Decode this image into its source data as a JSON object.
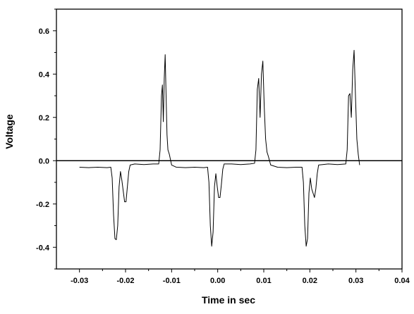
{
  "chart_data": {
    "type": "line",
    "title": "",
    "xlabel": "Time in sec",
    "ylabel": "Voltage",
    "xlim": [
      -0.035,
      0.04
    ],
    "ylim": [
      -0.5,
      0.7
    ],
    "x_ticks": [
      -0.03,
      -0.02,
      -0.01,
      0.0,
      0.01,
      0.02,
      0.03,
      0.04
    ],
    "x_tick_labels": [
      "-0.03",
      "-0.02",
      "-0.01",
      "0.00",
      "0.01",
      "0.02",
      "0.03",
      "0.04"
    ],
    "y_ticks": [
      -0.4,
      -0.2,
      0.0,
      0.2,
      0.4,
      0.6
    ],
    "y_tick_labels": [
      "-0.4",
      "-0.2",
      "0.0",
      "0.2",
      "0.4",
      "0.6"
    ],
    "zero_line": 0.0,
    "grid": false,
    "series": [
      {
        "color": "#000000",
        "points": [
          [
            -0.03,
            -0.03
          ],
          [
            -0.028,
            -0.032
          ],
          [
            -0.026,
            -0.03
          ],
          [
            -0.024,
            -0.032
          ],
          [
            -0.0232,
            -0.03
          ],
          [
            -0.0229,
            -0.08
          ],
          [
            -0.0226,
            -0.25
          ],
          [
            -0.0223,
            -0.36
          ],
          [
            -0.022,
            -0.365
          ],
          [
            -0.0217,
            -0.3
          ],
          [
            -0.0214,
            -0.12
          ],
          [
            -0.0211,
            -0.05
          ],
          [
            -0.0208,
            -0.09
          ],
          [
            -0.0205,
            -0.14
          ],
          [
            -0.0202,
            -0.19
          ],
          [
            -0.0199,
            -0.19
          ],
          [
            -0.0196,
            -0.12
          ],
          [
            -0.0193,
            -0.05
          ],
          [
            -0.019,
            -0.02
          ],
          [
            -0.018,
            -0.015
          ],
          [
            -0.016,
            -0.018
          ],
          [
            -0.014,
            -0.015
          ],
          [
            -0.0128,
            -0.015
          ],
          [
            -0.0125,
            0.05
          ],
          [
            -0.0122,
            0.3
          ],
          [
            -0.012,
            0.35
          ],
          [
            -0.0118,
            0.18
          ],
          [
            -0.0116,
            0.38
          ],
          [
            -0.0114,
            0.49
          ],
          [
            -0.0112,
            0.3
          ],
          [
            -0.011,
            0.12
          ],
          [
            -0.0108,
            0.05
          ],
          [
            -0.0105,
            0.03
          ],
          [
            -0.01,
            -0.02
          ],
          [
            -0.009,
            -0.03
          ],
          [
            -0.007,
            -0.032
          ],
          [
            -0.005,
            -0.03
          ],
          [
            -0.003,
            -0.032
          ],
          [
            -0.0022,
            -0.03
          ],
          [
            -0.0019,
            -0.1
          ],
          [
            -0.0016,
            -0.3
          ],
          [
            -0.0013,
            -0.395
          ],
          [
            -0.001,
            -0.33
          ],
          [
            -0.0007,
            -0.12
          ],
          [
            -0.0004,
            -0.06
          ],
          [
            -0.0001,
            -0.12
          ],
          [
            0.0002,
            -0.17
          ],
          [
            0.0005,
            -0.17
          ],
          [
            0.0008,
            -0.11
          ],
          [
            0.0011,
            -0.04
          ],
          [
            0.0014,
            -0.015
          ],
          [
            0.003,
            -0.015
          ],
          [
            0.005,
            -0.018
          ],
          [
            0.007,
            -0.015
          ],
          [
            0.008,
            -0.012
          ],
          [
            0.0083,
            0.05
          ],
          [
            0.0086,
            0.33
          ],
          [
            0.0089,
            0.38
          ],
          [
            0.0092,
            0.2
          ],
          [
            0.0095,
            0.4
          ],
          [
            0.0098,
            0.46
          ],
          [
            0.0101,
            0.25
          ],
          [
            0.0104,
            0.1
          ],
          [
            0.0107,
            0.04
          ],
          [
            0.011,
            0.02
          ],
          [
            0.0115,
            -0.02
          ],
          [
            0.013,
            -0.03
          ],
          [
            0.015,
            -0.032
          ],
          [
            0.017,
            -0.03
          ],
          [
            0.0183,
            -0.03
          ],
          [
            0.0186,
            -0.1
          ],
          [
            0.0189,
            -0.3
          ],
          [
            0.0192,
            -0.395
          ],
          [
            0.0195,
            -0.36
          ],
          [
            0.0198,
            -0.15
          ],
          [
            0.0201,
            -0.08
          ],
          [
            0.0204,
            -0.13
          ],
          [
            0.0207,
            -0.15
          ],
          [
            0.021,
            -0.17
          ],
          [
            0.0213,
            -0.13
          ],
          [
            0.0216,
            -0.06
          ],
          [
            0.0219,
            -0.02
          ],
          [
            0.024,
            -0.015
          ],
          [
            0.026,
            -0.018
          ],
          [
            0.0278,
            -0.015
          ],
          [
            0.0281,
            0.05
          ],
          [
            0.0284,
            0.3
          ],
          [
            0.0287,
            0.31
          ],
          [
            0.029,
            0.2
          ],
          [
            0.0293,
            0.42
          ],
          [
            0.0296,
            0.51
          ],
          [
            0.0299,
            0.3
          ],
          [
            0.0302,
            0.1
          ],
          [
            0.0305,
            0.03
          ],
          [
            0.0308,
            -0.02
          ]
        ]
      }
    ]
  }
}
